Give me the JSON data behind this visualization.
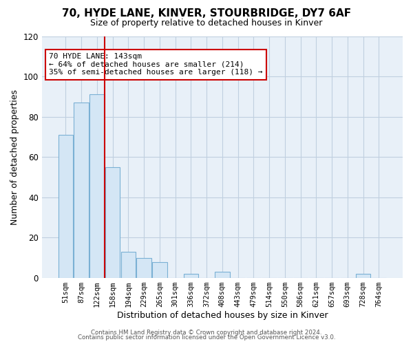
{
  "title": "70, HYDE LANE, KINVER, STOURBRIDGE, DY7 6AF",
  "subtitle": "Size of property relative to detached houses in Kinver",
  "xlabel": "Distribution of detached houses by size in Kinver",
  "ylabel": "Number of detached properties",
  "bar_labels": [
    "51sqm",
    "87sqm",
    "122sqm",
    "158sqm",
    "194sqm",
    "229sqm",
    "265sqm",
    "301sqm",
    "336sqm",
    "372sqm",
    "408sqm",
    "443sqm",
    "479sqm",
    "514sqm",
    "550sqm",
    "586sqm",
    "621sqm",
    "657sqm",
    "693sqm",
    "728sqm",
    "764sqm"
  ],
  "bar_values": [
    71,
    87,
    91,
    55,
    13,
    10,
    8,
    0,
    2,
    0,
    3,
    0,
    0,
    0,
    0,
    0,
    0,
    0,
    0,
    2,
    0
  ],
  "bar_color_fill": "#d4e6f5",
  "bar_color_edge": "#7ab0d4",
  "vline_x": 2.5,
  "vline_color": "#cc0000",
  "ylim": [
    0,
    120
  ],
  "yticks": [
    0,
    20,
    40,
    60,
    80,
    100,
    120
  ],
  "annotation_title": "70 HYDE LANE: 143sqm",
  "annotation_line1": "← 64% of detached houses are smaller (214)",
  "annotation_line2": "35% of semi-detached houses are larger (118) →",
  "annotation_box_color": "#ffffff",
  "annotation_box_edge": "#cc0000",
  "footer_line1": "Contains HM Land Registry data © Crown copyright and database right 2024.",
  "footer_line2": "Contains public sector information licensed under the Open Government Licence v3.0.",
  "background_color": "#ffffff",
  "plot_bg_color": "#e8f0f8",
  "grid_color": "#c0cfe0"
}
